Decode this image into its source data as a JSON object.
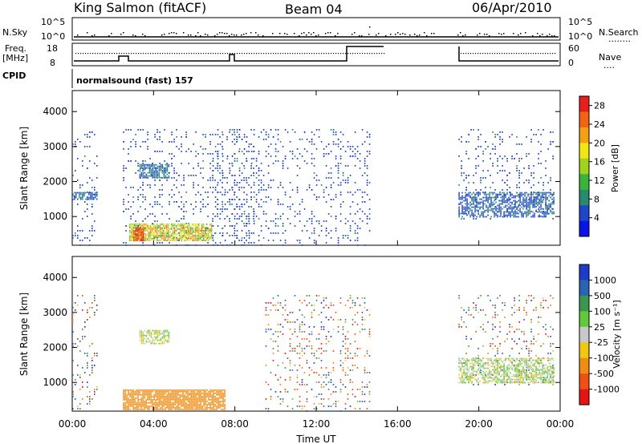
{
  "header": {
    "station": "King Salmon (fitACF)",
    "beam": "Beam 04",
    "date": "06/Apr/2010"
  },
  "top_panel": {
    "nsky_label": "N.Sky",
    "nsearch_label": "N.Search",
    "nsky_ticks": [
      "10^5",
      "10^0"
    ],
    "nsearch_ticks": [
      "10^5",
      "10^0"
    ],
    "nsearch_dots": "........",
    "freq_label_1": "Freq.",
    "freq_label_2": "[MHz]",
    "freq_ticks": [
      "18",
      "8"
    ],
    "nave_label": "Nave",
    "nave_ticks": [
      "60",
      "0"
    ],
    "nave_dots": "....",
    "cpid_label": "CPID",
    "cpid_value": "normalsound (fast) 157"
  },
  "chart_data": [
    {
      "type": "heatmap",
      "title": "",
      "xlabel": "",
      "ylabel": "Slant Range [km]",
      "xlim": [
        0,
        24
      ],
      "ylim": [
        180,
        4600
      ],
      "yticks": [
        "4000",
        "3000",
        "2000",
        "1000"
      ],
      "ytick_values": [
        4000,
        3000,
        2000,
        1000
      ],
      "colorbar_label": "Power [dB]",
      "colorbar_ticks": [
        "28",
        "24",
        "20",
        "16",
        "12",
        "8",
        "4"
      ],
      "colorbar_tick_values": [
        28,
        24,
        20,
        16,
        12,
        8,
        4
      ],
      "colorbar_range": [
        0,
        30
      ],
      "colorbar_colors": [
        "#0a14e6",
        "#1e46c8",
        "#2a8a6e",
        "#3cb43c",
        "#a0d21e",
        "#f0e614",
        "#f5a014",
        "#f06414",
        "#e61e1e"
      ],
      "regions": [
        {
          "t": [
            0.0,
            1.3
          ],
          "r": [
            200,
            3500
          ],
          "level": "scatter",
          "value": 5
        },
        {
          "t": [
            0.0,
            1.2
          ],
          "r": [
            1500,
            1700
          ],
          "level": "band",
          "value": 6
        },
        {
          "t": [
            2.5,
            8.9
          ],
          "r": [
            200,
            3500
          ],
          "level": "scatter",
          "value": 5
        },
        {
          "t": [
            3.3,
            4.8
          ],
          "r": [
            2100,
            2500
          ],
          "level": "patch",
          "value": 7
        },
        {
          "t": [
            2.8,
            6.9
          ],
          "r": [
            300,
            800
          ],
          "level": "strong",
          "value": 18
        },
        {
          "t": [
            3.0,
            3.5
          ],
          "r": [
            300,
            700
          ],
          "level": "peak",
          "value": 26
        },
        {
          "t": [
            6.9,
            14.6
          ],
          "r": [
            200,
            3500
          ],
          "level": "scatter",
          "value": 5
        },
        {
          "t": [
            19.0,
            23.7
          ],
          "r": [
            900,
            3500
          ],
          "level": "scatter",
          "value": 5
        },
        {
          "t": [
            19.0,
            23.7
          ],
          "r": [
            1000,
            1700
          ],
          "level": "band",
          "value": 6
        }
      ]
    },
    {
      "type": "heatmap",
      "title": "",
      "xlabel": "Time UT",
      "ylabel": "Slant Range [km]",
      "xlim": [
        0,
        24
      ],
      "ylim": [
        180,
        4600
      ],
      "xticks": [
        "00:00",
        "04:00",
        "08:00",
        "12:00",
        "16:00",
        "20:00",
        "00:00"
      ],
      "xtick_values": [
        0,
        4,
        8,
        12,
        16,
        20,
        24
      ],
      "yticks": [
        "4000",
        "3000",
        "2000",
        "1000"
      ],
      "ytick_values": [
        4000,
        3000,
        2000,
        1000
      ],
      "colorbar_label": "Velocity [m s⁻¹]",
      "colorbar_ticks": [
        "1000",
        "500",
        "100",
        "25",
        "-25",
        "-100",
        "-500",
        "-1000"
      ],
      "colorbar_tick_values": [
        1000,
        500,
        100,
        25,
        -25,
        -100,
        -500,
        -1000
      ],
      "colorbar_colors": [
        "#1e3cc8",
        "#2864b4",
        "#3c9650",
        "#64c83c",
        "#c8c8c8",
        "#f0c814",
        "#f08c14",
        "#f05014",
        "#e61414"
      ],
      "regions": [
        {
          "t": [
            0.0,
            1.3
          ],
          "r": [
            200,
            3500
          ],
          "level": "scatter",
          "value": 0
        },
        {
          "t": [
            3.3,
            4.8
          ],
          "r": [
            2100,
            2500
          ],
          "level": "patch",
          "value": 10
        },
        {
          "t": [
            2.5,
            7.5
          ],
          "r": [
            250,
            800
          ],
          "level": "strong",
          "value": -200
        },
        {
          "t": [
            9.5,
            14.6
          ],
          "r": [
            200,
            3500
          ],
          "level": "scatter",
          "value": 0
        },
        {
          "t": [
            19.0,
            23.7
          ],
          "r": [
            900,
            3500
          ],
          "level": "scatter",
          "value": 0
        },
        {
          "t": [
            19.0,
            23.7
          ],
          "r": [
            1000,
            1700
          ],
          "level": "band",
          "value": 20
        }
      ]
    }
  ]
}
